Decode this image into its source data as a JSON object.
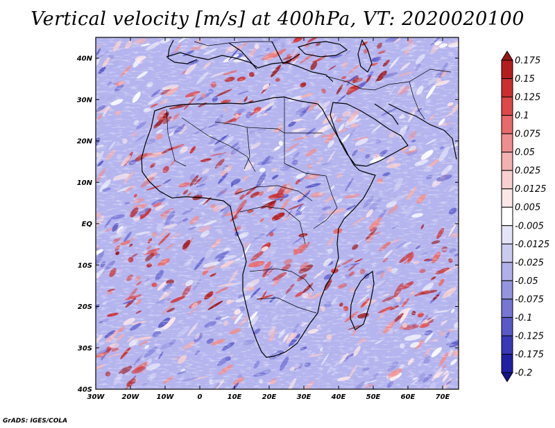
{
  "title": "Vertical velocity [m/s] at 400hPa, VT: 2020020100",
  "credit": "GrADS: IGES/COLA",
  "map": {
    "lon_range": [
      -30,
      75
    ],
    "lat_range": [
      -40,
      45
    ],
    "lat_labels": [
      "40N",
      "30N",
      "20N",
      "10N",
      "EQ",
      "10S",
      "20S",
      "30S",
      "40S"
    ],
    "lon_labels": [
      "30W",
      "20W",
      "10W",
      "0",
      "10E",
      "20E",
      "30E",
      "40E",
      "50E",
      "60E",
      "70E"
    ]
  },
  "colorbar": {
    "levels": [
      "0.175",
      "0.15",
      "0.125",
      "0.1",
      "0.075",
      "0.05",
      "0.025",
      "0.0125",
      "0.005",
      "-0.005",
      "-0.0125",
      "-0.025",
      "-0.05",
      "-0.075",
      "-0.1",
      "-0.125",
      "-0.175",
      "-0.2"
    ],
    "colors": [
      "#9c1515",
      "#b51d1d",
      "#cc2e2e",
      "#de4848",
      "#e86a6a",
      "#f08e8e",
      "#f5b0b0",
      "#f9cfcf",
      "#fce7e7",
      "#ffffff",
      "#e4e4f8",
      "#cbcbf2",
      "#b0b0ea",
      "#9494e0",
      "#7676d6",
      "#5858c8",
      "#3838b8",
      "#2020a5",
      "#14148c"
    ]
  }
}
